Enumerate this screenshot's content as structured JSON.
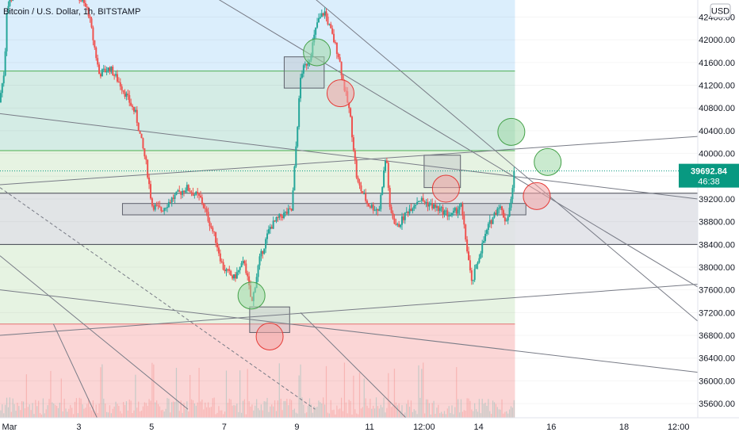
{
  "header": {
    "title": "Bitcoin / U.S. Dollar, 1h, BITSTAMP",
    "currency": "USD"
  },
  "price_badge": {
    "price": "39692.84",
    "countdown": "46:38",
    "color": "#089981"
  },
  "colors": {
    "up": "#26a69a",
    "down": "#ef5350",
    "blue_zone": "#dbeefc",
    "teal_zone": "#d4ece5",
    "green_zone": "#e6f3e2",
    "red_zone": "#fbd6d6",
    "gray_box": "#dfe1e6",
    "line": "#787b86",
    "circle_green": "#9fd8a8",
    "circle_red": "#f2a4a4"
  },
  "chart_data": {
    "type": "candlestick",
    "title": "Bitcoin / U.S. Dollar, 1h, BITSTAMP",
    "y_ticks": [
      35600,
      36000,
      36400,
      36800,
      37200,
      37600,
      38000,
      38400,
      38800,
      39200,
      39600,
      40000,
      40400,
      40800,
      41200,
      41600,
      42000,
      42400
    ],
    "y_tick_labels": [
      "35600.00",
      "36000.00",
      "36400.00",
      "36800.00",
      "37200.00",
      "37600.00",
      "38000.00",
      "38400.00",
      "38800.00",
      "39200.00",
      "39600.00",
      "40000.00",
      "40400.00",
      "40800.00",
      "41200.00",
      "41600.00",
      "42000.00",
      "42400.00"
    ],
    "ylim": [
      35350,
      42700
    ],
    "x_ticks": [
      {
        "label": "Mar",
        "day": 1
      },
      {
        "label": "3",
        "day": 3
      },
      {
        "label": "5",
        "day": 5
      },
      {
        "label": "7",
        "day": 7
      },
      {
        "label": "9",
        "day": 9
      },
      {
        "label": "11",
        "day": 11
      },
      {
        "label": "12:00",
        "day": 12.5
      },
      {
        "label": "14",
        "day": 14
      },
      {
        "label": "16",
        "day": 16
      },
      {
        "label": "18",
        "day": 18
      },
      {
        "label": "12:00",
        "day": 19.5
      }
    ],
    "xlim_days": [
      0.83,
      20.03
    ],
    "last_candle_day": 15.0,
    "last_price": 39692.84,
    "price_path": [
      [
        0.85,
        40900
      ],
      [
        1.0,
        41500
      ],
      [
        1.05,
        42500
      ],
      [
        1.15,
        42700
      ],
      [
        1.4,
        42900
      ],
      [
        2.8,
        43000
      ],
      [
        3.3,
        42500
      ],
      [
        3.6,
        41400
      ],
      [
        3.9,
        41500
      ],
      [
        4.2,
        41200
      ],
      [
        4.6,
        40700
      ],
      [
        4.9,
        39800
      ],
      [
        5.05,
        39100
      ],
      [
        5.3,
        39000
      ],
      [
        5.6,
        39200
      ],
      [
        6.0,
        39400
      ],
      [
        6.4,
        39200
      ],
      [
        6.8,
        38500
      ],
      [
        7.0,
        38000
      ],
      [
        7.3,
        37800
      ],
      [
        7.6,
        38100
      ],
      [
        7.8,
        37350
      ],
      [
        8.0,
        38100
      ],
      [
        8.3,
        38700
      ],
      [
        8.6,
        38900
      ],
      [
        8.9,
        39000
      ],
      [
        9.15,
        41400
      ],
      [
        9.4,
        41700
      ],
      [
        9.6,
        42300
      ],
      [
        9.8,
        42500
      ],
      [
        10.0,
        42100
      ],
      [
        10.2,
        41700
      ],
      [
        10.3,
        41300
      ],
      [
        10.5,
        40700
      ],
      [
        10.7,
        39500
      ],
      [
        11.0,
        39100
      ],
      [
        11.3,
        39000
      ],
      [
        11.5,
        40000
      ],
      [
        11.6,
        39000
      ],
      [
        11.8,
        38700
      ],
      [
        12.1,
        39000
      ],
      [
        12.4,
        39200
      ],
      [
        12.7,
        39100
      ],
      [
        13.0,
        39000
      ],
      [
        13.3,
        38900
      ],
      [
        13.55,
        39100
      ],
      [
        13.75,
        38200
      ],
      [
        13.85,
        37700
      ],
      [
        14.1,
        38300
      ],
      [
        14.3,
        38700
      ],
      [
        14.6,
        39100
      ],
      [
        14.8,
        38800
      ],
      [
        14.95,
        39200
      ],
      [
        15.0,
        39692.84
      ]
    ],
    "zones": [
      {
        "name": "blue-zone",
        "y": [
          41450,
          42700
        ],
        "x_days": [
          0.83,
          15.0
        ],
        "color": "#dbeefc"
      },
      {
        "name": "teal-zone",
        "y": [
          40050,
          41450
        ],
        "x_days": [
          0.83,
          15.0
        ],
        "color": "#d4ece5"
      },
      {
        "name": "green-zone",
        "y": [
          37000,
          40050
        ],
        "x_days": [
          0.83,
          15.0
        ],
        "color": "#e6f3e2"
      },
      {
        "name": "red-zone",
        "y": [
          35350,
          37000
        ],
        "x_days": [
          0.83,
          15.0
        ],
        "color": "#fbd6d6"
      },
      {
        "name": "gray-band",
        "y": [
          38400,
          39300
        ],
        "x_days": [
          0.83,
          20.03
        ],
        "color": "#dfe1e6"
      }
    ],
    "boxes": [
      {
        "x_days": [
          4.2,
          15.3
        ],
        "y": [
          38920,
          39120
        ]
      },
      {
        "x_days": [
          8.65,
          9.75
        ],
        "y": [
          41150,
          41700
        ]
      },
      {
        "x_days": [
          12.5,
          13.5
        ],
        "y": [
          39400,
          39970
        ]
      },
      {
        "x_days": [
          7.7,
          8.8
        ],
        "y": [
          36850,
          37300
        ]
      }
    ],
    "circles": [
      {
        "day": 9.55,
        "price": 41780,
        "type": "green"
      },
      {
        "day": 10.2,
        "price": 41060,
        "type": "red"
      },
      {
        "day": 14.9,
        "price": 40380,
        "type": "green"
      },
      {
        "day": 15.9,
        "price": 39850,
        "type": "green"
      },
      {
        "day": 13.1,
        "price": 39380,
        "type": "red"
      },
      {
        "day": 15.6,
        "price": 39250,
        "type": "red"
      },
      {
        "day": 7.75,
        "price": 37500,
        "type": "green"
      },
      {
        "day": 8.25,
        "price": 36780,
        "type": "red"
      }
    ],
    "trendlines": [
      {
        "from": [
          6.35,
          42900
        ],
        "to": [
          20.03,
          37650
        ]
      },
      {
        "from": [
          9.35,
          42800
        ],
        "to": [
          20.03,
          37050
        ]
      },
      {
        "from": [
          0.83,
          39450
        ],
        "to": [
          20.03,
          40300
        ]
      },
      {
        "from": [
          0.83,
          40700
        ],
        "to": [
          20.03,
          39200
        ]
      },
      {
        "from": [
          0.83,
          36800
        ],
        "to": [
          20.03,
          37700
        ]
      },
      {
        "from": [
          0.83,
          37600
        ],
        "to": [
          20.03,
          36150
        ]
      },
      {
        "from": [
          0.83,
          38200
        ],
        "to": [
          6.0,
          35500
        ]
      },
      {
        "from": [
          2.3,
          37000
        ],
        "to": [
          3.5,
          35350
        ]
      },
      {
        "from": [
          9.1,
          37200
        ],
        "to": [
          12.0,
          35350
        ]
      }
    ],
    "dashed_lines": [
      {
        "from": [
          0.83,
          39400
        ],
        "to": [
          9.5,
          35500
        ]
      }
    ]
  }
}
